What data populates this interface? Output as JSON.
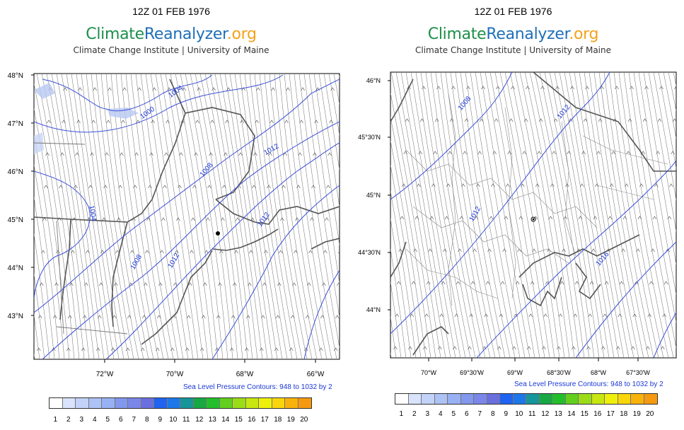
{
  "left": {
    "title": "12Z 01 FEB 1976",
    "brand": {
      "part1": "Climate",
      "part2": "Reanalyzer",
      "part3": ".org"
    },
    "subtitle": "Climate Change Institute | University of Maine",
    "lat_labels": [
      "48°N",
      "47°N",
      "46°N",
      "45°N",
      "44°N",
      "43°N"
    ],
    "lon_labels": [
      "72°W",
      "70°W",
      "68°W",
      "66°W"
    ],
    "isobar_labels": [
      "1000",
      "1004",
      "1004",
      "1008",
      "1008",
      "1012",
      "1012",
      "1012"
    ],
    "legend_note": "Sea Level Pressure Contours: 948 to 1032 by 2",
    "colorbar_labels": [
      "1",
      "2",
      "3",
      "4",
      "5",
      "6",
      "7",
      "8",
      "9",
      "10",
      "11",
      "12",
      "13",
      "14",
      "15",
      "16",
      "17",
      "18",
      "19",
      "20"
    ]
  },
  "right": {
    "title": "12Z 01 FEB 1976",
    "brand": {
      "part1": "Climate",
      "part2": "Reanalyzer",
      "part3": ".org"
    },
    "subtitle": "Climate Change Institute | University of Maine",
    "lat_labels": [
      "46°N",
      "45°30'N",
      "45°N",
      "44°30'N",
      "44°N"
    ],
    "lon_labels": [
      "70°W",
      "69°30'W",
      "69°W",
      "68°30'W",
      "68°W",
      "67°30'W"
    ],
    "isobar_labels": [
      "1008",
      "1012",
      "1012",
      "1016"
    ],
    "legend_note": "Sea Level Pressure Contours: 948 to 1032 by 2",
    "colorbar_labels": [
      "1",
      "2",
      "3",
      "4",
      "5",
      "6",
      "7",
      "8",
      "9",
      "10",
      "11",
      "12",
      "13",
      "14",
      "15",
      "16",
      "17",
      "18",
      "19",
      "20"
    ]
  },
  "colorbar_colors": [
    "#ffffff",
    "#d9e3fb",
    "#c3d2f8",
    "#adc2f5",
    "#98b1f2",
    "#8297ee",
    "#7a86e8",
    "#6a6fe0",
    "#1f63f0",
    "#1c77e8",
    "#16959a",
    "#17a844",
    "#22bf2b",
    "#62cf1e",
    "#9bdc17",
    "#c8e711",
    "#eef00c",
    "#f8d60b",
    "#f8b20b",
    "#f59a10"
  ],
  "colors": {
    "isobar": "#3b4fd8",
    "streamline": "#6b6b6b",
    "coast": "#555555",
    "label_blue": "#1a37d6"
  }
}
